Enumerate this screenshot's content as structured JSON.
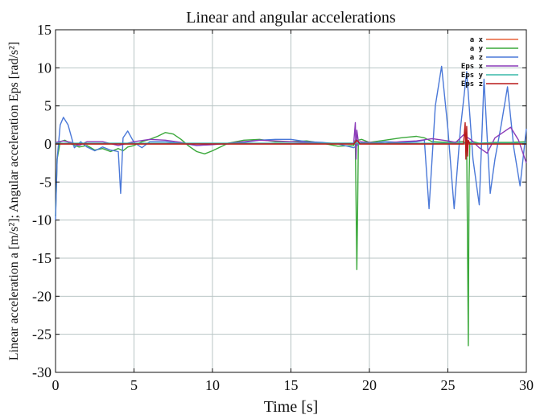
{
  "chart_data": {
    "type": "line",
    "title": "Linear and angular accelerations",
    "xlabel": "Time [s]",
    "ylabel": "Linear acceleration a [m/s²]; Angular acceleration Eps [rad/s²]",
    "xlim": [
      0,
      30
    ],
    "ylim": [
      -30,
      15
    ],
    "xticks": [
      0,
      5,
      10,
      15,
      20,
      25,
      30
    ],
    "yticks": [
      15,
      10,
      5,
      0,
      -5,
      -10,
      -15,
      -20,
      -25,
      -30
    ],
    "grid": true,
    "legend_position": "top-right",
    "series": [
      {
        "name": "a x",
        "color": "#e8623a",
        "x": [
          0,
          2,
          5,
          8,
          10,
          12,
          15,
          18,
          19,
          20,
          22,
          24,
          26,
          28,
          30
        ],
        "y": [
          0,
          0,
          0,
          0,
          0,
          0,
          0,
          0,
          0,
          0,
          0,
          0,
          0,
          0,
          0
        ]
      },
      {
        "name": "a y",
        "color": "#3aa83a",
        "x": [
          0,
          0.1,
          0.3,
          0.6,
          1.0,
          1.5,
          2.0,
          2.5,
          3.0,
          3.5,
          4.0,
          4.3,
          4.6,
          5.0,
          5.5,
          6.0,
          6.5,
          7.0,
          7.5,
          8.0,
          8.5,
          9.0,
          9.5,
          10.0,
          11.0,
          12.0,
          13.0,
          14.0,
          15.0,
          16.0,
          17.0,
          18.0,
          19.0,
          19.1,
          19.2,
          19.25,
          19.3,
          19.5,
          20.0,
          21.0,
          22.0,
          23.0,
          23.5,
          24.0,
          25.0,
          26.0,
          26.2,
          26.3,
          26.35,
          26.4,
          26.6,
          27.0,
          28.0,
          29.0,
          30.0
        ],
        "y": [
          -9.5,
          -2,
          0.3,
          0.5,
          0,
          -0.4,
          -0.2,
          -0.8,
          -0.6,
          -1.0,
          -0.6,
          -0.9,
          -0.4,
          -0.2,
          0.3,
          0.6,
          1.0,
          1.5,
          1.3,
          0.6,
          -0.3,
          -1.0,
          -1.3,
          -0.9,
          0.1,
          0.5,
          0.6,
          0.3,
          0.3,
          0.4,
          0.1,
          -0.3,
          -0.2,
          0.5,
          -16.5,
          -8,
          0.5,
          0.6,
          0.2,
          0.5,
          0.8,
          1.0,
          0.8,
          0.3,
          0.2,
          0.3,
          0,
          -26.5,
          -5,
          0.2,
          0.3,
          0.1,
          0.2,
          0.2,
          0.3
        ]
      },
      {
        "name": "a z",
        "color": "#4a78d8",
        "x": [
          0,
          0.1,
          0.3,
          0.5,
          0.8,
          1.2,
          1.6,
          2.0,
          2.5,
          3.0,
          3.5,
          4.0,
          4.15,
          4.3,
          4.6,
          5.0,
          5.5,
          6.0,
          7.0,
          8.0,
          9.0,
          10.0,
          11.0,
          12.0,
          13.0,
          14.0,
          15.0,
          16.0,
          17.0,
          18.0,
          19.0,
          19.5,
          20.0,
          21.0,
          22.0,
          23.0,
          23.5,
          23.8,
          24.2,
          24.6,
          25.0,
          25.4,
          25.8,
          26.2,
          26.6,
          27.0,
          27.3,
          27.7,
          28.0,
          28.4,
          28.8,
          29.2,
          29.6,
          30.0
        ],
        "y": [
          -10,
          -2,
          2.5,
          3.5,
          2.5,
          -0.5,
          0.3,
          -0.4,
          -0.9,
          -0.4,
          -0.8,
          -1.0,
          -6.5,
          0.8,
          1.7,
          0.2,
          -0.5,
          0.3,
          0.3,
          0.1,
          -0.2,
          0,
          0,
          0.2,
          0.5,
          0.6,
          0.6,
          0.3,
          0.2,
          0,
          -0.5,
          0.2,
          0.1,
          0.3,
          0.2,
          0.3,
          0.5,
          -8.5,
          5,
          10.2,
          2,
          -8.5,
          2,
          9.5,
          -2,
          -8,
          8.5,
          -6.5,
          -2,
          2.5,
          7.5,
          -0.5,
          -5.5,
          2
        ]
      },
      {
        "name": "Eps x",
        "color": "#8a3ab8",
        "x": [
          0,
          0.5,
          1.0,
          1.5,
          2.0,
          3.0,
          4.0,
          5.0,
          6.0,
          7.0,
          8.0,
          9.0,
          10.0,
          11.0,
          12.0,
          13.0,
          14.0,
          15.0,
          16.0,
          17.0,
          18.0,
          19.0,
          19.1,
          19.15,
          19.2,
          19.3,
          20.0,
          21.0,
          22.0,
          23.0,
          24.0,
          25.0,
          25.5,
          26.0,
          26.5,
          27.0,
          27.5,
          28.0,
          28.5,
          29.0,
          29.5,
          30.0
        ],
        "y": [
          0.2,
          0.4,
          0.2,
          -0.2,
          0.3,
          0.3,
          -0.2,
          0.3,
          0.6,
          0.5,
          0.2,
          -0.2,
          -0.1,
          0.1,
          0.3,
          0.5,
          0.4,
          0.3,
          0.2,
          0.1,
          0.1,
          0.1,
          2.8,
          -2,
          1.8,
          0.3,
          0.2,
          0.1,
          0.3,
          0.4,
          0.7,
          0.4,
          0.2,
          1.2,
          0.5,
          -0.5,
          -1.2,
          0.8,
          1.5,
          2.2,
          0.5,
          -2.5
        ]
      },
      {
        "name": "Eps y",
        "color": "#38b8a8",
        "x": [
          0,
          2,
          5,
          8,
          10,
          12,
          15,
          18,
          19,
          20,
          22,
          24,
          26,
          28,
          30
        ],
        "y": [
          0.1,
          0.1,
          0.1,
          0.1,
          0.1,
          0.1,
          0.1,
          0.1,
          0.1,
          0.1,
          0.1,
          0.1,
          0.1,
          0.1,
          0.1
        ]
      },
      {
        "name": "Eps z",
        "color": "#b81818",
        "x": [
          0,
          2,
          5,
          8,
          10,
          12,
          15,
          18,
          19.0,
          19.2,
          19.4,
          20,
          22,
          24,
          26.0,
          26.1,
          26.15,
          26.2,
          26.25,
          26.3,
          26.4,
          27,
          28,
          30
        ],
        "y": [
          0,
          0,
          0,
          0,
          0,
          0,
          0,
          0,
          0,
          0.5,
          0,
          0,
          0,
          0,
          0,
          2.8,
          -2.0,
          2.3,
          -1.6,
          0.5,
          0,
          0,
          0,
          0
        ]
      }
    ]
  }
}
